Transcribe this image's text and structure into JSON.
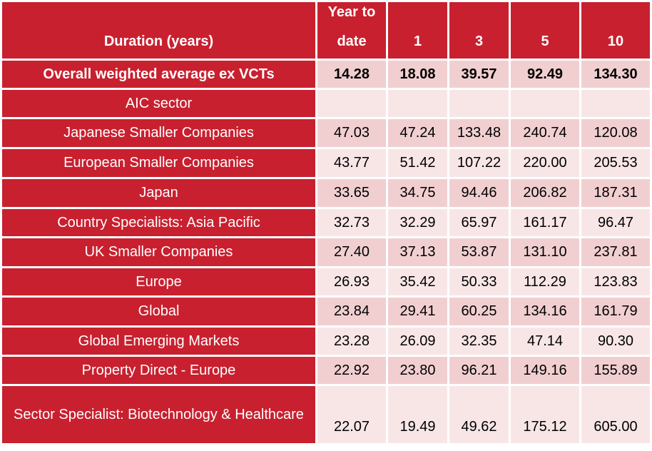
{
  "header": {
    "duration_label": "Duration (years)",
    "ytd_label": "Year to date",
    "col_1": "1",
    "col_3": "3",
    "col_5": "5",
    "col_10": "10"
  },
  "overall": {
    "label": "Overall weighted average ex VCTs",
    "values": [
      "14.28",
      "18.08",
      "39.57",
      "92.49",
      "134.30"
    ]
  },
  "section_label": "AIC sector",
  "rows": [
    {
      "label": "Japanese Smaller Companies",
      "values": [
        "47.03",
        "47.24",
        "133.48",
        "240.74",
        "120.08"
      ]
    },
    {
      "label": "European Smaller Companies",
      "values": [
        "43.77",
        "51.42",
        "107.22",
        "220.00",
        "205.53"
      ]
    },
    {
      "label": "Japan",
      "values": [
        "33.65",
        "34.75",
        "94.46",
        "206.82",
        "187.31"
      ]
    },
    {
      "label": "Country Specialists: Asia Pacific",
      "values": [
        "32.73",
        "32.29",
        "65.97",
        "161.17",
        "96.47"
      ]
    },
    {
      "label": "UK Smaller Companies",
      "values": [
        "27.40",
        "37.13",
        "53.87",
        "131.10",
        "237.81"
      ]
    },
    {
      "label": "Europe",
      "values": [
        "26.93",
        "35.42",
        "50.33",
        "112.29",
        "123.83"
      ]
    },
    {
      "label": "Global",
      "values": [
        "23.84",
        "29.41",
        "60.25",
        "134.16",
        "161.79"
      ]
    },
    {
      "label": "Global Emerging Markets",
      "values": [
        "23.28",
        "26.09",
        "32.35",
        "47.14",
        "90.30"
      ]
    },
    {
      "label": "Property Direct - Europe",
      "values": [
        "22.92",
        "23.80",
        "96.21",
        "149.16",
        "155.89"
      ]
    },
    {
      "label": "Sector Specialist: Biotechnology & Healthcare",
      "values": [
        "22.07",
        "19.49",
        "49.62",
        "175.12",
        "605.00"
      ]
    }
  ],
  "colors": {
    "header_red": "#c8202f",
    "band_dark": "#f1cfd1",
    "band_light": "#f8e6e7"
  }
}
